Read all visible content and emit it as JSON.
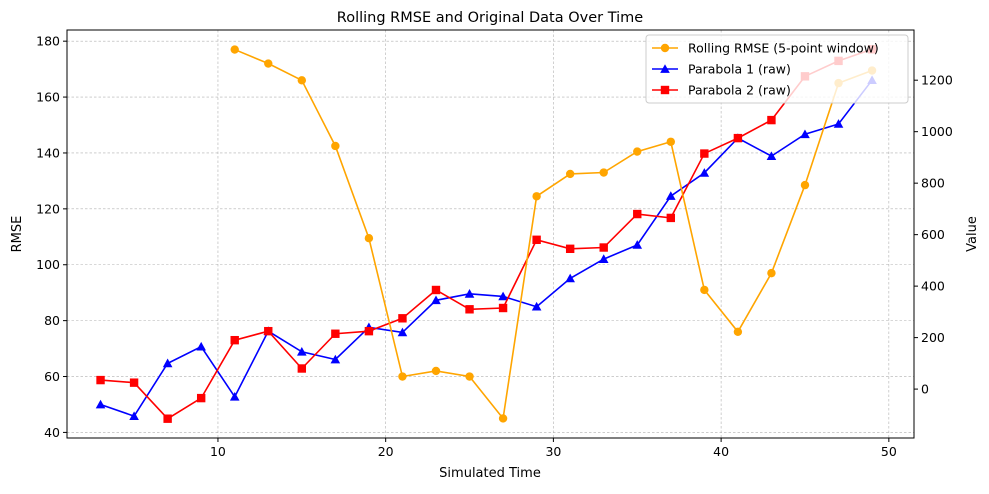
{
  "chart_data": {
    "type": "line",
    "title": "Rolling RMSE and Original Data Over Time",
    "xlabel": "Simulated Time",
    "ylabel_left": "RMSE",
    "ylabel_right": "Value",
    "xlim": [
      1,
      51.5
    ],
    "ylim_left": [
      38,
      184
    ],
    "ylim_right": [
      -190,
      1395
    ],
    "xticks": [
      10,
      20,
      30,
      40,
      50
    ],
    "yticks_left": [
      40,
      60,
      80,
      100,
      120,
      140,
      160,
      180
    ],
    "yticks_right": [
      0,
      200,
      400,
      600,
      800,
      1000,
      1200
    ],
    "grid": true,
    "legend_position": "top-right",
    "series": [
      {
        "name": "Rolling RMSE (5-point window)",
        "axis": "left",
        "color": "#FFA500",
        "marker": "circle",
        "x": [
          11,
          13,
          15,
          17,
          19,
          21,
          23,
          25,
          27,
          29,
          31,
          33,
          35,
          37,
          39,
          41,
          43,
          45,
          47,
          49
        ],
        "values": [
          177,
          172,
          166,
          142.5,
          109.5,
          60,
          62,
          60,
          45,
          124.5,
          132.5,
          133,
          140.5,
          144,
          91,
          76,
          97,
          128.5,
          165,
          169.5
        ]
      },
      {
        "name": "Parabola 1 (raw)",
        "axis": "right",
        "color": "#0000FF",
        "marker": "triangle",
        "x": [
          3,
          5,
          7,
          9,
          11,
          13,
          15,
          17,
          19,
          21,
          23,
          25,
          27,
          29,
          31,
          33,
          35,
          37,
          39,
          41,
          43,
          45,
          47,
          49
        ],
        "values": [
          -60,
          -105,
          100,
          165,
          -30,
          225,
          145,
          115,
          240,
          220,
          345,
          370,
          360,
          320,
          430,
          505,
          560,
          750,
          840,
          975,
          905,
          990,
          1030,
          1200
        ]
      },
      {
        "name": "Parabola 2 (raw)",
        "axis": "right",
        "color": "#FF0000",
        "marker": "square",
        "x": [
          3,
          5,
          7,
          9,
          11,
          13,
          15,
          17,
          19,
          21,
          23,
          25,
          27,
          29,
          31,
          33,
          35,
          37,
          39,
          41,
          43,
          45,
          47,
          49
        ],
        "values": [
          35,
          25,
          -115,
          -35,
          190,
          225,
          80,
          215,
          225,
          275,
          385,
          310,
          315,
          580,
          545,
          550,
          680,
          665,
          915,
          975,
          1045,
          1215,
          1275,
          1320
        ]
      }
    ]
  }
}
